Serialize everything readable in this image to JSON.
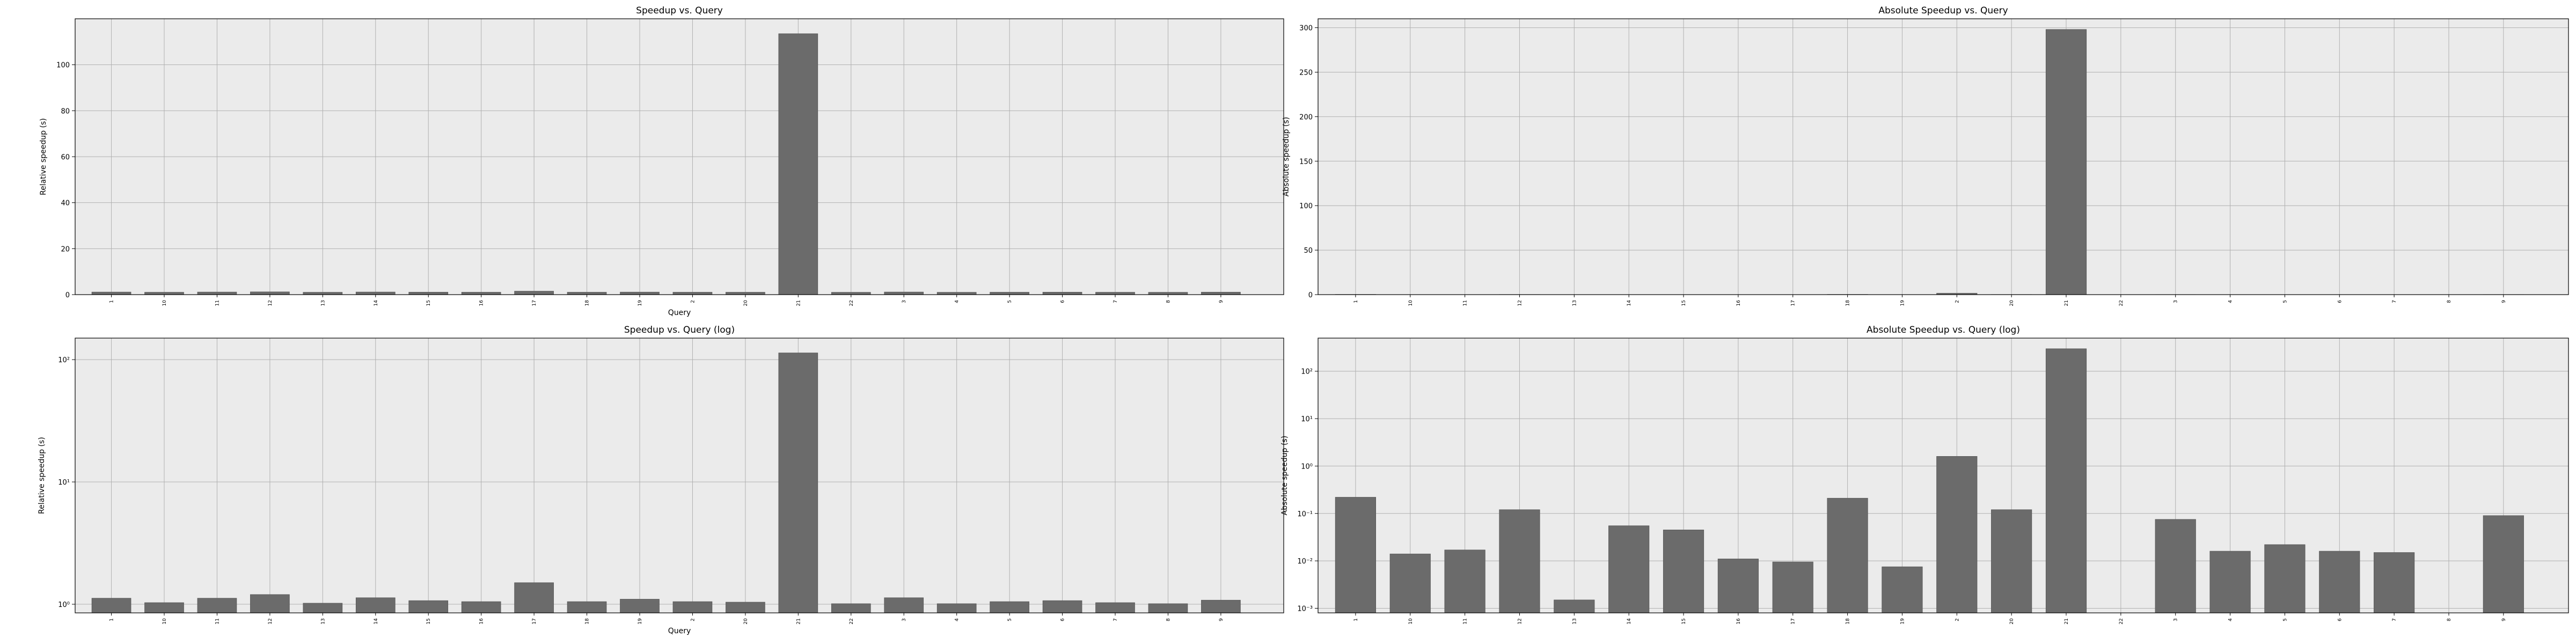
{
  "chart_data": [
    {
      "type": "bar",
      "title": "Speedup vs. Query",
      "xlabel": "Query",
      "ylabel": "Relative speedup (s)",
      "yscale": "linear",
      "ylim": [
        0,
        120
      ],
      "yticks": [
        0,
        20,
        40,
        60,
        80,
        100
      ],
      "ytick_labels": [
        "0",
        "20",
        "40",
        "60",
        "80",
        "100"
      ],
      "grid": true,
      "categories": [
        "1",
        "10",
        "11",
        "12",
        "13",
        "14",
        "15",
        "16",
        "17",
        "18",
        "19",
        "2",
        "20",
        "21",
        "22",
        "3",
        "4",
        "5",
        "6",
        "7",
        "8",
        "9"
      ],
      "values": [
        1.12,
        1.03,
        1.12,
        1.2,
        1.02,
        1.13,
        1.07,
        1.05,
        1.5,
        1.05,
        1.1,
        1.05,
        1.04,
        113.5,
        1.01,
        1.13,
        1.01,
        1.05,
        1.07,
        1.03,
        1.01,
        1.08
      ]
    },
    {
      "type": "bar",
      "title": "Absolute Speedup vs. Query",
      "xlabel": "",
      "ylabel": "Absolute speedup (s)",
      "yscale": "linear",
      "ylim": [
        0,
        310
      ],
      "yticks": [
        0,
        50,
        100,
        150,
        200,
        250,
        300
      ],
      "ytick_labels": [
        "0",
        "50",
        "100",
        "150",
        "200",
        "250",
        "300"
      ],
      "grid": true,
      "categories": [
        "1",
        "10",
        "11",
        "12",
        "13",
        "14",
        "15",
        "16",
        "17",
        "18",
        "19",
        "2",
        "20",
        "21",
        "22",
        "3",
        "4",
        "5",
        "6",
        "7",
        "8",
        "9"
      ],
      "values": [
        0.22,
        0.014,
        0.017,
        0.12,
        0.0015,
        0.055,
        0.045,
        0.011,
        0.0095,
        0.21,
        0.0075,
        1.6,
        0.12,
        298,
        null,
        0.075,
        0.016,
        0.022,
        0.016,
        0.015,
        null,
        0.09
      ]
    },
    {
      "type": "bar",
      "title": "Speedup vs. Query (log)",
      "xlabel": "Query",
      "ylabel": "Relative speedup (s)",
      "yscale": "log",
      "ylim": [
        0.85,
        150
      ],
      "yticks": [
        1,
        10,
        100
      ],
      "ytick_labels": [
        "10⁰",
        "10¹",
        "10²"
      ],
      "grid": true,
      "categories": [
        "1",
        "10",
        "11",
        "12",
        "13",
        "14",
        "15",
        "16",
        "17",
        "18",
        "19",
        "2",
        "20",
        "21",
        "22",
        "3",
        "4",
        "5",
        "6",
        "7",
        "8",
        "9"
      ],
      "values": [
        1.12,
        1.03,
        1.12,
        1.2,
        1.02,
        1.13,
        1.07,
        1.05,
        1.5,
        1.05,
        1.1,
        1.05,
        1.04,
        113.5,
        1.01,
        1.13,
        1.01,
        1.05,
        1.07,
        1.03,
        1.01,
        1.08
      ]
    },
    {
      "type": "bar",
      "title": "Absolute Speedup vs. Query (log)",
      "xlabel": "",
      "ylabel": "Absolute speedup (s)",
      "yscale": "log",
      "ylim": [
        0.0008,
        500
      ],
      "yticks": [
        0.001,
        0.01,
        0.1,
        1,
        10,
        100
      ],
      "ytick_labels": [
        "10⁻³",
        "10⁻²",
        "10⁻¹",
        "10⁰",
        "10¹",
        "10²"
      ],
      "grid": true,
      "categories": [
        "1",
        "10",
        "11",
        "12",
        "13",
        "14",
        "15",
        "16",
        "17",
        "18",
        "19",
        "2",
        "20",
        "21",
        "22",
        "3",
        "4",
        "5",
        "6",
        "7",
        "8",
        "9"
      ],
      "values": [
        0.22,
        0.014,
        0.017,
        0.12,
        0.0015,
        0.055,
        0.045,
        0.011,
        0.0095,
        0.21,
        0.0075,
        1.6,
        0.12,
        298,
        null,
        0.075,
        0.016,
        0.022,
        0.016,
        0.015,
        null,
        0.09
      ]
    }
  ]
}
